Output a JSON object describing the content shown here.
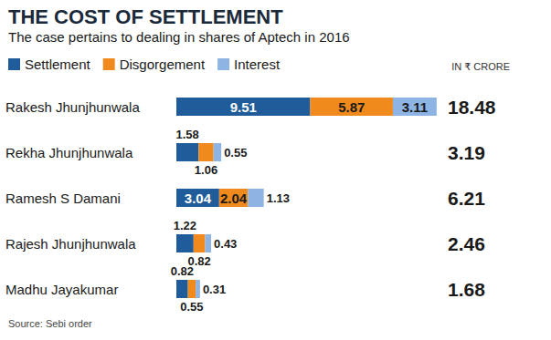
{
  "chart_data": {
    "type": "bar",
    "title": "THE COST OF SETTLEMENT",
    "subtitle": "The case pertains to dealing in shares of Aptech in 2016",
    "unit": "IN ₹ CRORE",
    "source": "Source: Sebi order",
    "orientation": "horizontal",
    "stacked": true,
    "data_labels": true,
    "tick_labels": "y",
    "grid": false,
    "legend": "top-left",
    "xlim": [
      0,
      18.5
    ],
    "categories": [
      "Rakesh Jhunjhunwala",
      "Rekha Jhunjhunwala",
      "Ramesh S Damani",
      "Rajesh Jhunjhunwala",
      "Madhu Jayakumar"
    ],
    "series": [
      {
        "name": "Settlement",
        "color": "#1f5c99",
        "values": [
          9.51,
          1.58,
          3.04,
          1.22,
          0.82
        ]
      },
      {
        "name": "Disgorgement",
        "color": "#f08a1c",
        "values": [
          5.87,
          1.06,
          2.04,
          0.82,
          0.55
        ]
      },
      {
        "name": "Interest",
        "color": "#8db4e2",
        "values": [
          3.11,
          0.55,
          1.13,
          0.43,
          0.31
        ]
      }
    ],
    "totals": [
      18.48,
      3.19,
      6.21,
      2.46,
      1.68
    ]
  }
}
